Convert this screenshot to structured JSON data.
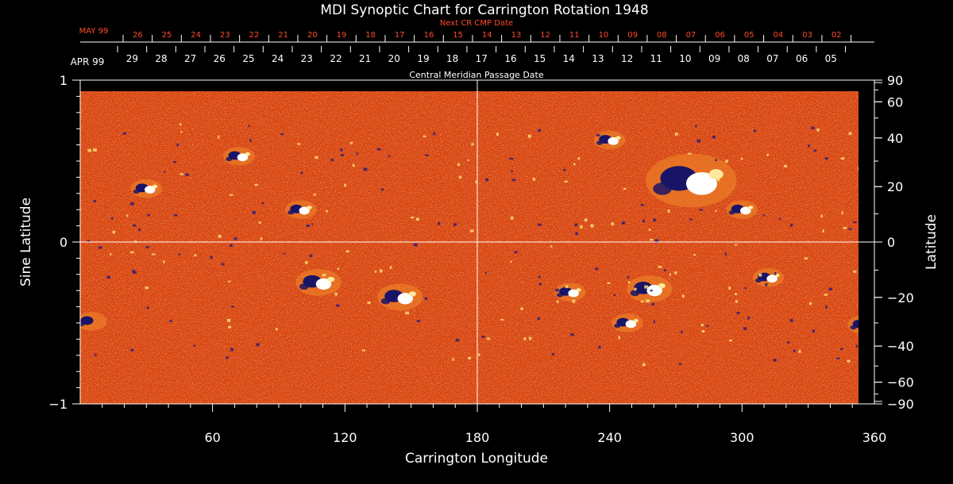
{
  "chart_data": {
    "type": "heatmap",
    "title": "MDI Synoptic Chart for Carrington Rotation 1948",
    "xlabel": "Carrington Longitude",
    "ylabel_left": "Sine Latitude",
    "ylabel_right": "Latitude",
    "xlim": [
      0,
      360
    ],
    "ylim": [
      -1,
      1
    ],
    "x_ticks": [
      "60",
      "120",
      "180",
      "240",
      "300",
      "360"
    ],
    "y_ticks_left": [
      "1",
      "0",
      "−1"
    ],
    "y_ticks_right": [
      "90",
      "60",
      "40",
      "20",
      "0",
      "−20",
      "−40",
      "−60",
      "−90"
    ],
    "top_axis": {
      "label": "Central Meridian Passage Date",
      "month_label": "APR 99",
      "dates": [
        "29",
        "28",
        "27",
        "26",
        "25",
        "24",
        "23",
        "22",
        "21",
        "20",
        "19",
        "18",
        "17",
        "16",
        "15",
        "14",
        "13",
        "12",
        "11",
        "10",
        "09",
        "08",
        "07",
        "06",
        "05"
      ]
    },
    "next_cr_axis": {
      "label": "Next CR CMP Date",
      "month_label": "MAY 99",
      "dates": [
        "26",
        "25",
        "24",
        "23",
        "22",
        "21",
        "20",
        "19",
        "18",
        "17",
        "16",
        "15",
        "14",
        "13",
        "12",
        "11",
        "10",
        "09",
        "08",
        "07",
        "06",
        "05",
        "04",
        "03",
        "02"
      ]
    },
    "crosshair": {
      "longitude": 180,
      "sine_latitude": 0
    },
    "regions": [
      {
        "lon": 30,
        "sinlat": 0.33,
        "polarity": "bipole",
        "size": "small"
      },
      {
        "lon": 72,
        "sinlat": 0.53,
        "polarity": "bipole",
        "size": "small"
      },
      {
        "lon": 100,
        "sinlat": 0.2,
        "polarity": "bipole",
        "size": "small"
      },
      {
        "lon": 240,
        "sinlat": 0.63,
        "polarity": "bipole",
        "size": "small"
      },
      {
        "lon": 277,
        "sinlat": 0.38,
        "polarity": "bipole",
        "size": "large"
      },
      {
        "lon": 300,
        "sinlat": 0.2,
        "polarity": "bipole",
        "size": "small"
      },
      {
        "lon": 108,
        "sinlat": -0.25,
        "polarity": "bipole",
        "size": "medium"
      },
      {
        "lon": 145,
        "sinlat": -0.34,
        "polarity": "bipole",
        "size": "medium"
      },
      {
        "lon": 222,
        "sinlat": -0.31,
        "polarity": "bipole",
        "size": "small"
      },
      {
        "lon": 258,
        "sinlat": -0.29,
        "polarity": "bipole",
        "size": "medium"
      },
      {
        "lon": 312,
        "sinlat": -0.22,
        "polarity": "bipole",
        "size": "small"
      },
      {
        "lon": 248,
        "sinlat": -0.5,
        "polarity": "bipole",
        "size": "small"
      },
      {
        "lon": 5,
        "sinlat": -0.49,
        "polarity": "negative",
        "size": "small"
      },
      {
        "lon": 355,
        "sinlat": -0.51,
        "polarity": "bipole",
        "size": "small"
      }
    ],
    "colors": {
      "background": "#000000",
      "field_base": "#d8400e",
      "positive": "#ffffff",
      "negative": "#1a1466",
      "title_text": "#ffffff",
      "next_cr_text": "#ff4a2a",
      "crosshair": "#ffffff"
    }
  }
}
